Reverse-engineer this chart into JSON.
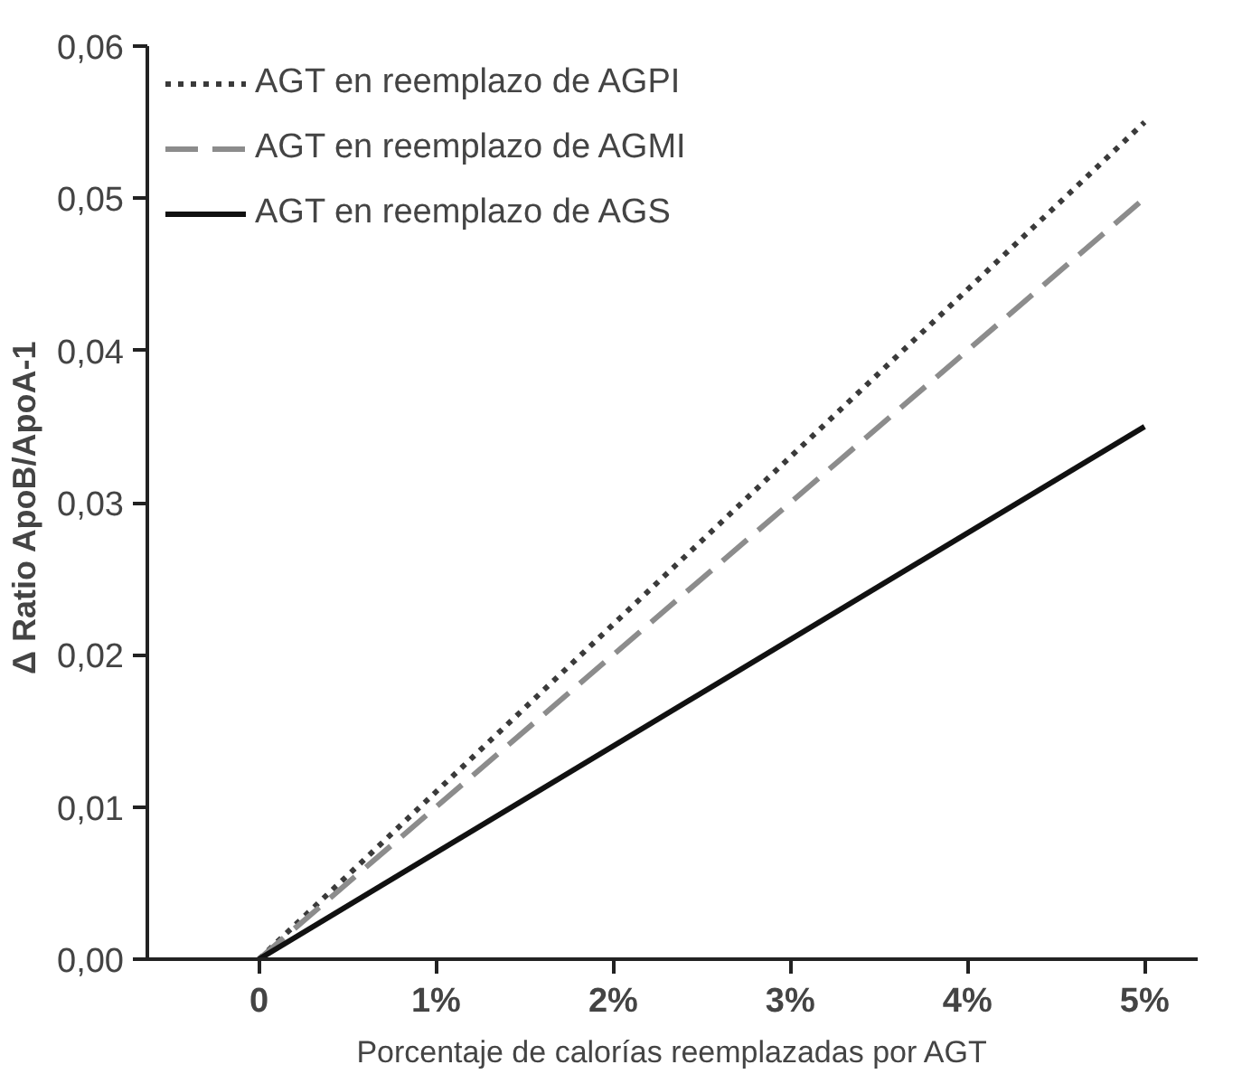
{
  "chart_data": {
    "type": "line",
    "xlabel": "Porcentaje de calorías reemplazadas por AGT",
    "ylabel": "Δ  Ratio ApoB/ApoA-1",
    "x": [
      0,
      5
    ],
    "series": [
      {
        "name": "AGT en reemplazo de AGPI",
        "color": "#3a3a3a",
        "values": [
          0,
          0.055
        ],
        "line_style": "dotted"
      },
      {
        "name": "AGT en reemplazo de AGMI",
        "color": "#8c8c8c",
        "values": [
          0,
          0.05
        ],
        "line_style": "dashed"
      },
      {
        "name": "AGT en reemplazo de AGS",
        "color": "#111111",
        "values": [
          0,
          0.035
        ],
        "line_style": "solid"
      }
    ],
    "xlim": [
      -0.63,
      5.3
    ],
    "ylim": [
      0,
      0.06
    ],
    "xticks": [
      {
        "value": 0,
        "label": "0"
      },
      {
        "value": 1,
        "label": "1%"
      },
      {
        "value": 2,
        "label": "2%"
      },
      {
        "value": 3,
        "label": "3%"
      },
      {
        "value": 4,
        "label": "4%"
      },
      {
        "value": 5,
        "label": "5%"
      }
    ],
    "yticks": [
      {
        "value": 0,
        "label": "0,00"
      },
      {
        "value": 0.01,
        "label": "0,01"
      },
      {
        "value": 0.02,
        "label": "0,02"
      },
      {
        "value": 0.03,
        "label": "0,03"
      },
      {
        "value": 0.04,
        "label": "0,04"
      },
      {
        "value": 0.05,
        "label": "0,05"
      },
      {
        "value": 0.06,
        "label": "0,06"
      }
    ],
    "grid": false,
    "legend": "top left"
  }
}
